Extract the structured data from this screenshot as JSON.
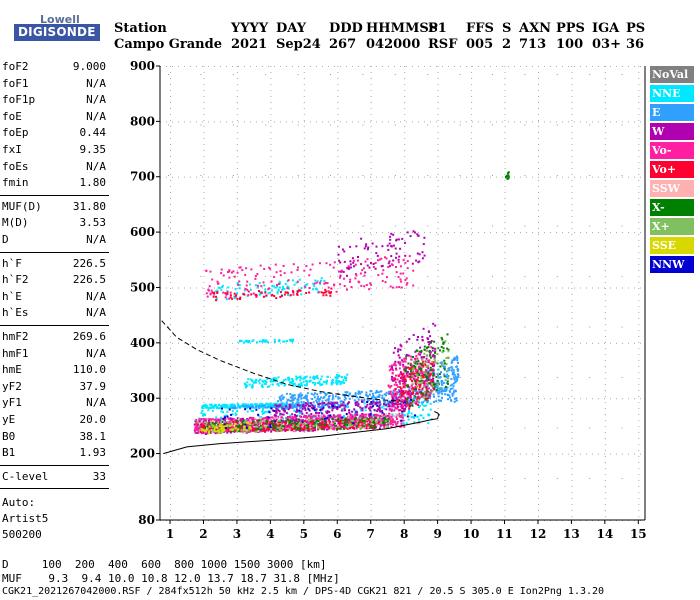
{
  "logo": {
    "line1": "Lowell",
    "line2": "DIGISONDE"
  },
  "header": {
    "labels": [
      {
        "key": "station",
        "label": "Station",
        "value": "Campo Grande"
      },
      {
        "key": "yyyy",
        "label": "YYYY",
        "value": "2021"
      },
      {
        "key": "day",
        "label": "DAY",
        "value": "Sep24"
      },
      {
        "key": "ddd",
        "label": "DDD",
        "value": "267"
      },
      {
        "key": "hhmmss",
        "label": "HHMMSS",
        "value": "042000"
      },
      {
        "key": "p1",
        "label": "P1",
        "value": "RSF"
      },
      {
        "key": "ffs",
        "label": "FFS",
        "value": "005"
      },
      {
        "key": "s",
        "label": "S",
        "value": "2"
      },
      {
        "key": "axn",
        "label": "AXN",
        "value": "713"
      },
      {
        "key": "pps",
        "label": "PPS",
        "value": "100"
      },
      {
        "key": "iga",
        "label": "IGA",
        "value": "03+"
      },
      {
        "key": "ps",
        "label": "PS",
        "value": "36"
      }
    ]
  },
  "params": {
    "group1": [
      {
        "name": "foF2",
        "value": "9.000"
      },
      {
        "name": "foF1",
        "value": "N/A"
      },
      {
        "name": "foF1p",
        "value": "N/A"
      },
      {
        "name": "foE",
        "value": "N/A"
      },
      {
        "name": "foEp",
        "value": "0.44"
      },
      {
        "name": "fxI",
        "value": "9.35"
      },
      {
        "name": "foEs",
        "value": "N/A"
      },
      {
        "name": "fmin",
        "value": "1.80"
      }
    ],
    "group2": [
      {
        "name": "MUF(D)",
        "value": "31.80"
      },
      {
        "name": "M(D)",
        "value": "3.53"
      },
      {
        "name": "D",
        "value": "N/A"
      }
    ],
    "group3": [
      {
        "name": "h`F",
        "value": "226.5"
      },
      {
        "name": "h`F2",
        "value": "226.5"
      },
      {
        "name": "h`E",
        "value": "N/A"
      },
      {
        "name": "h`Es",
        "value": "N/A"
      }
    ],
    "group4": [
      {
        "name": "hmF2",
        "value": "269.6"
      },
      {
        "name": "hmF1",
        "value": "N/A"
      },
      {
        "name": "hmE",
        "value": "110.0"
      },
      {
        "name": "yF2",
        "value": "37.9"
      },
      {
        "name": "yF1",
        "value": "N/A"
      },
      {
        "name": "yE",
        "value": "20.0"
      },
      {
        "name": "B0",
        "value": "38.1"
      },
      {
        "name": "B1",
        "value": "1.93"
      }
    ],
    "group5": [
      {
        "name": "C-level",
        "value": "33"
      }
    ],
    "auto": [
      "Auto:",
      "Artist5",
      "500200"
    ]
  },
  "legend": [
    {
      "label": "NoVal",
      "bg": "#808080",
      "fg": "#ffffff"
    },
    {
      "label": "NNE",
      "bg": "#00e8ff",
      "fg": "#ffffff"
    },
    {
      "label": "E",
      "bg": "#30a0ff",
      "fg": "#ffffff"
    },
    {
      "label": "W",
      "bg": "#b000b0",
      "fg": "#ffffff"
    },
    {
      "label": "Vo-",
      "bg": "#ff1fa0",
      "fg": "#ffffff"
    },
    {
      "label": "Vo+",
      "bg": "#ff0030",
      "fg": "#ffffff"
    },
    {
      "label": "SSW",
      "bg": "#ffb0b0",
      "fg": "#ffffff"
    },
    {
      "label": "X-",
      "bg": "#008000",
      "fg": "#ffffff"
    },
    {
      "label": "X+",
      "bg": "#80c060",
      "fg": "#ffffff"
    },
    {
      "label": "SSE",
      "bg": "#d8d800",
      "fg": "#ffffff"
    },
    {
      "label": "NNW",
      "bg": "#0000d0",
      "fg": "#ffffff"
    }
  ],
  "bottom": {
    "d_row": "D     100  200  400  600  800 1000 1500 3000 [km]",
    "muf_row": "MUF    9.3  9.4 10.0 10.8 12.0 13.7 18.7 31.8 [MHz]",
    "footer": "CGK21_2021267042000.RSF / 284fx512h 50 kHz 2.5 km / DPS-4D CGK21 821 / 20.5 S 305.0 E Ion2Png 1.3.20"
  },
  "chart_data": {
    "type": "scatter",
    "xlim": [
      0.7,
      15.2
    ],
    "ylim": [
      80,
      900
    ],
    "x_ticks": [
      1,
      2,
      3,
      4,
      5,
      6,
      7,
      8,
      9,
      10,
      11,
      12,
      13,
      14,
      15
    ],
    "y_ticks": [
      80,
      200,
      300,
      400,
      500,
      600,
      700,
      800,
      900
    ],
    "grid": true,
    "series": [
      {
        "name": "NNE",
        "color": "#00e8ff",
        "clusters": [
          {
            "x": [
              1.9,
              5.0
            ],
            "y": [
              283,
              293
            ],
            "n": 240
          },
          {
            "x": [
              3.2,
              6.3
            ],
            "y": [
              320,
              345
            ],
            "n": 180
          },
          {
            "x": [
              2.3,
              5.6
            ],
            "y": [
              478,
              520
            ],
            "n": 90
          },
          {
            "x": [
              1.7,
              8.8
            ],
            "y": [
              238,
              300
            ],
            "n": 300
          },
          {
            "x": [
              3.0,
              4.7
            ],
            "y": [
              402,
              408
            ],
            "n": 40
          }
        ]
      },
      {
        "name": "E",
        "color": "#30a0ff",
        "clusters": [
          {
            "x": [
              4.2,
              9.6
            ],
            "y": [
              285,
              320
            ],
            "n": 350
          },
          {
            "x": [
              8.6,
              9.6
            ],
            "y": [
              300,
              380
            ],
            "n": 120
          },
          {
            "x": [
              2.8,
              6.0
            ],
            "y": [
              282,
              290
            ],
            "n": 90
          }
        ]
      },
      {
        "name": "W",
        "color": "#b000b0",
        "clusters": [
          {
            "x": [
              1.7,
              7.5
            ],
            "y": [
              236,
              275
            ],
            "n": 500
          },
          {
            "x": [
              6.0,
              8.6
            ],
            "y": [
              520,
              610
            ],
            "n": 90
          },
          {
            "x": [
              7.6,
              8.9
            ],
            "y": [
              280,
              440
            ],
            "n": 160
          },
          {
            "x": [
              4.0,
              8.2
            ],
            "y": [
              270,
              300
            ],
            "n": 200
          }
        ]
      },
      {
        "name": "Vo-",
        "color": "#ff1fa0",
        "clusters": [
          {
            "x": [
              1.7,
              8.0
            ],
            "y": [
              238,
              275
            ],
            "n": 550
          },
          {
            "x": [
              2.0,
              8.3
            ],
            "y": [
              478,
              560
            ],
            "n": 180
          },
          {
            "x": [
              7.5,
              8.9
            ],
            "y": [
              270,
              400
            ],
            "n": 200
          }
        ]
      },
      {
        "name": "Vo+",
        "color": "#ff0030",
        "clusters": [
          {
            "x": [
              1.8,
              7.2
            ],
            "y": [
              240,
              265
            ],
            "n": 300
          },
          {
            "x": [
              7.7,
              8.9
            ],
            "y": [
              270,
              380
            ],
            "n": 120
          },
          {
            "x": [
              2.2,
              5.8
            ],
            "y": [
              478,
              500
            ],
            "n": 60
          }
        ]
      },
      {
        "name": "SSW",
        "color": "#ffb0b0",
        "clusters": [
          {
            "x": [
              1.9,
              8.5
            ],
            "y": [
              238,
              275
            ],
            "n": 80
          }
        ]
      },
      {
        "name": "X-",
        "color": "#008000",
        "clusters": [
          {
            "x": [
              2.0,
              7.5
            ],
            "y": [
              240,
              268
            ],
            "n": 170
          },
          {
            "x": [
              8.0,
              9.3
            ],
            "y": [
              280,
              420
            ],
            "n": 110
          },
          {
            "x": [
              11.0,
              11.1
            ],
            "y": [
              695,
              710
            ],
            "n": 12
          }
        ]
      },
      {
        "name": "X+",
        "color": "#80c060",
        "clusters": [
          {
            "x": [
              1.8,
              7.6
            ],
            "y": [
              238,
              268
            ],
            "n": 100
          },
          {
            "x": [
              8.2,
              9.3
            ],
            "y": [
              290,
              410
            ],
            "n": 60
          }
        ]
      },
      {
        "name": "SSE",
        "color": "#d8d800",
        "clusters": [
          {
            "x": [
              1.8,
              3.4
            ],
            "y": [
              238,
              258
            ],
            "n": 60
          }
        ]
      },
      {
        "name": "NNW",
        "color": "#0000d0",
        "clusters": [
          {
            "x": [
              2.5,
              8.5
            ],
            "y": [
              245,
              300
            ],
            "n": 50
          }
        ]
      }
    ],
    "curves": [
      {
        "name": "true-height profile",
        "style": "solid",
        "x": [
          0.8,
          1.5,
          2.5,
          3.5,
          4.5,
          5.5,
          6.5,
          7.5,
          8.0,
          8.5,
          8.8,
          9.0,
          9.02,
          9.05,
          9.0,
          8.9
        ],
        "y": [
          200,
          212,
          218,
          222,
          226,
          231,
          238,
          245,
          251,
          257,
          261,
          263,
          268,
          270,
          273,
          276
        ]
      },
      {
        "name": "MUF curve",
        "style": "dashed",
        "x": [
          0.75,
          1.2,
          1.8,
          2.5,
          3.5,
          4.5,
          5.5,
          6.5,
          7.3,
          7.9
        ],
        "y": [
          440,
          410,
          388,
          368,
          345,
          325,
          312,
          303,
          297,
          295
        ]
      }
    ]
  }
}
